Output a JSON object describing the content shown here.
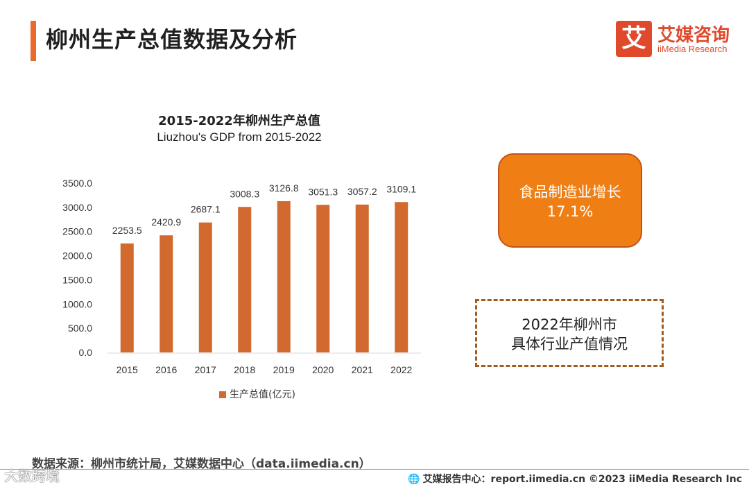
{
  "header": {
    "title": "柳州生产总值数据及分析"
  },
  "logo": {
    "mark": "艾",
    "name_cn": "艾媒咨询",
    "name_en": "iiMedia Research"
  },
  "chart_data": {
    "type": "bar",
    "title": "2015-2022年柳州生产总值",
    "subtitle": "Liuzhou's GDP from 2015-2022",
    "categories": [
      "2015",
      "2016",
      "2017",
      "2018",
      "2019",
      "2020",
      "2021",
      "2022"
    ],
    "series": [
      {
        "name": "生产总值(亿元)",
        "values": [
          2253.5,
          2420.9,
          2687.1,
          3008.3,
          3126.8,
          3051.3,
          3057.2,
          3109.1
        ]
      }
    ],
    "value_labels": [
      "2253.5",
      "2420.9",
      "2687.1",
      "3008.3",
      "3126.8",
      "3051.3",
      "3057.2",
      "3109.1"
    ],
    "y_ticks": [
      "0.0",
      "500.0",
      "1000.0",
      "1500.0",
      "2000.0",
      "2500.0",
      "3000.0",
      "3500.0"
    ],
    "ylim": [
      0,
      3500
    ],
    "grid": false,
    "legend_position": "bottom",
    "bar_color": "#d2692f"
  },
  "highlight": {
    "line1": "食品制造业增长",
    "line2": "17.1%"
  },
  "industry_box": {
    "line1": "2022年柳州市",
    "line2": "具体行业产值情况"
  },
  "source": "数据来源：柳州市统计局，艾媒数据中心（data.iimedia.cn）",
  "footer": {
    "icon": "globe-icon",
    "text": "艾媒报告中心：report.iimedia.cn   ©2023  iiMedia Research  Inc"
  },
  "watermark": "大数跨境"
}
